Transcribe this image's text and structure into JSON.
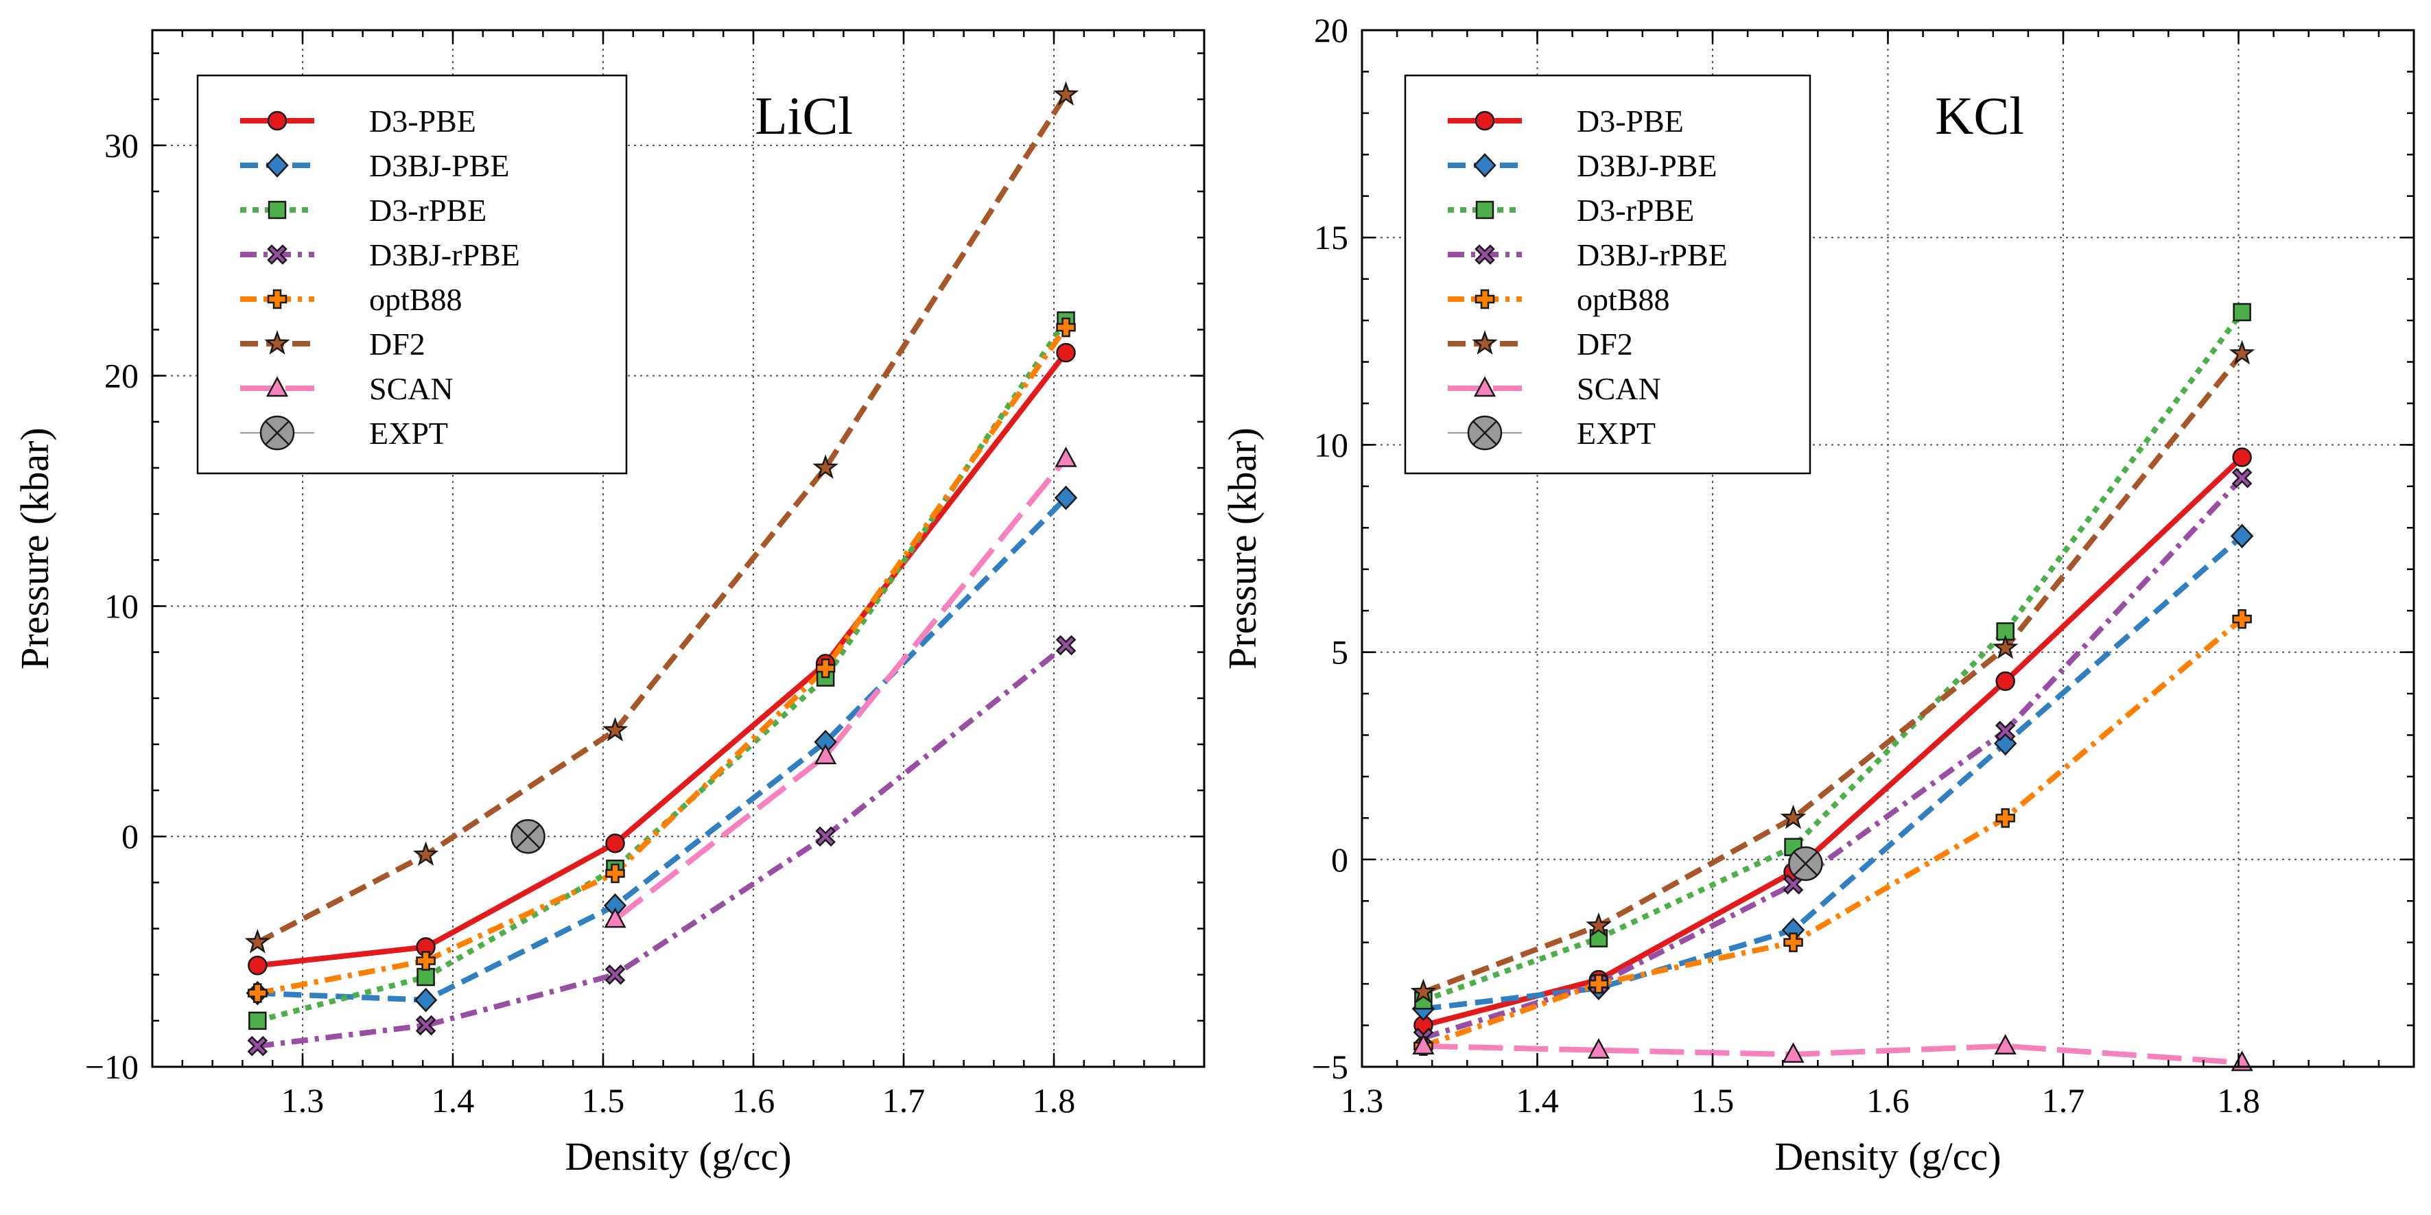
{
  "chart_data": [
    {
      "type": "line",
      "title": "LiCl",
      "xlabel": "Density (g/cc)",
      "ylabel": "Pressure (kbar)",
      "xlim": [
        1.2,
        1.9
      ],
      "ylim": [
        -10,
        35
      ],
      "xticks": [
        1.3,
        1.4,
        1.5,
        1.6,
        1.7,
        1.8
      ],
      "yticks": [
        -10,
        0,
        10,
        20,
        30
      ],
      "xtick_labels": [
        "1.3",
        "1.4",
        "1.5",
        "1.6",
        "1.7",
        "1.8"
      ],
      "ytick_labels": [
        "−10",
        "0",
        "10",
        "20",
        "30"
      ],
      "grid": true,
      "legend_position": "top-left",
      "series": [
        {
          "name": "D3-PBE",
          "color": "#e31a1c",
          "marker": "circle",
          "dash": "solid",
          "x": [
            1.27,
            1.382,
            1.508,
            1.648,
            1.808
          ],
          "y": [
            -5.6,
            -4.8,
            -0.3,
            7.5,
            21.0
          ]
        },
        {
          "name": "D3BJ-PBE",
          "color": "#2f7fc1",
          "marker": "diamond",
          "dash": "dashed",
          "x": [
            1.27,
            1.382,
            1.508,
            1.648,
            1.808
          ],
          "y": [
            -6.8,
            -7.1,
            -3.0,
            4.1,
            14.7
          ]
        },
        {
          "name": "D3-rPBE",
          "color": "#4daf4a",
          "marker": "square",
          "dash": "dotted",
          "x": [
            1.27,
            1.382,
            1.508,
            1.648,
            1.808
          ],
          "y": [
            -8.0,
            -6.1,
            -1.4,
            6.9,
            22.4
          ]
        },
        {
          "name": "D3BJ-rPBE",
          "color": "#984ea3",
          "marker": "x",
          "dash": "dashdot",
          "x": [
            1.27,
            1.382,
            1.508,
            1.648,
            1.808
          ],
          "y": [
            -9.1,
            -8.2,
            -6.0,
            0.0,
            8.3
          ]
        },
        {
          "name": "optB88",
          "color": "#ff7f00",
          "marker": "plus",
          "dash": "dashdot",
          "x": [
            1.27,
            1.382,
            1.508,
            1.648,
            1.808
          ],
          "y": [
            -6.8,
            -5.4,
            -1.6,
            7.3,
            22.1
          ]
        },
        {
          "name": "DF2",
          "color": "#a65628",
          "marker": "star",
          "dash": "dashed",
          "x": [
            1.27,
            1.382,
            1.508,
            1.648,
            1.808
          ],
          "y": [
            -4.6,
            -0.8,
            4.6,
            16.0,
            32.2
          ]
        },
        {
          "name": "SCAN",
          "color": "#f781bf",
          "marker": "triangle",
          "dash": "longdash",
          "x": [
            1.508,
            1.648,
            1.808
          ],
          "y": [
            -3.6,
            3.5,
            16.4
          ]
        },
        {
          "name": "EXPT",
          "color": "#999999",
          "marker": "circle-x",
          "dash": "none",
          "x": [
            1.45
          ],
          "y": [
            0.0
          ]
        }
      ]
    },
    {
      "type": "line",
      "title": "KCl",
      "xlabel": "Density (g/cc)",
      "ylabel": "Pressure (kbar)",
      "xlim": [
        1.3,
        1.9
      ],
      "ylim": [
        -5,
        20
      ],
      "xticks": [
        1.3,
        1.4,
        1.5,
        1.6,
        1.7,
        1.8
      ],
      "yticks": [
        -5,
        0,
        5,
        10,
        15,
        20
      ],
      "xtick_labels": [
        "1.3",
        "1.4",
        "1.5",
        "1.6",
        "1.7",
        "1.8"
      ],
      "ytick_labels": [
        "−5",
        "0",
        "5",
        "10",
        "15",
        "20"
      ],
      "grid": true,
      "legend_position": "top-left",
      "series": [
        {
          "name": "D3-PBE",
          "color": "#e31a1c",
          "marker": "circle",
          "dash": "solid",
          "x": [
            1.335,
            1.435,
            1.546,
            1.667,
            1.802
          ],
          "y": [
            -4.0,
            -2.9,
            -0.3,
            4.3,
            9.7
          ]
        },
        {
          "name": "D3BJ-PBE",
          "color": "#2f7fc1",
          "marker": "diamond",
          "dash": "dashed",
          "x": [
            1.335,
            1.435,
            1.546,
            1.667,
            1.802
          ],
          "y": [
            -3.6,
            -3.1,
            -1.7,
            2.8,
            7.8
          ]
        },
        {
          "name": "D3-rPBE",
          "color": "#4daf4a",
          "marker": "square",
          "dash": "dotted",
          "x": [
            1.335,
            1.435,
            1.546,
            1.667,
            1.802
          ],
          "y": [
            -3.4,
            -1.9,
            0.3,
            5.5,
            13.2
          ]
        },
        {
          "name": "D3BJ-rPBE",
          "color": "#984ea3",
          "marker": "x",
          "dash": "dashdot",
          "x": [
            1.335,
            1.435,
            1.546,
            1.667,
            1.802
          ],
          "y": [
            -4.3,
            -3.0,
            -0.6,
            3.1,
            9.2
          ]
        },
        {
          "name": "optB88",
          "color": "#ff7f00",
          "marker": "plus",
          "dash": "dashdot",
          "x": [
            1.335,
            1.435,
            1.546,
            1.667,
            1.802
          ],
          "y": [
            -4.5,
            -3.0,
            -2.0,
            1.0,
            5.8
          ]
        },
        {
          "name": "DF2",
          "color": "#a65628",
          "marker": "star",
          "dash": "dashed",
          "x": [
            1.335,
            1.435,
            1.546,
            1.667,
            1.802
          ],
          "y": [
            -3.2,
            -1.6,
            1.0,
            5.1,
            12.2
          ]
        },
        {
          "name": "SCAN",
          "color": "#f781bf",
          "marker": "triangle",
          "dash": "longdash",
          "x": [
            1.335,
            1.435,
            1.546,
            1.667,
            1.802
          ],
          "y": [
            -4.5,
            -4.6,
            -4.7,
            -4.5,
            -4.9
          ]
        },
        {
          "name": "EXPT",
          "color": "#999999",
          "marker": "circle-x",
          "dash": "none",
          "x": [
            1.553
          ],
          "y": [
            -0.1
          ]
        }
      ]
    }
  ]
}
